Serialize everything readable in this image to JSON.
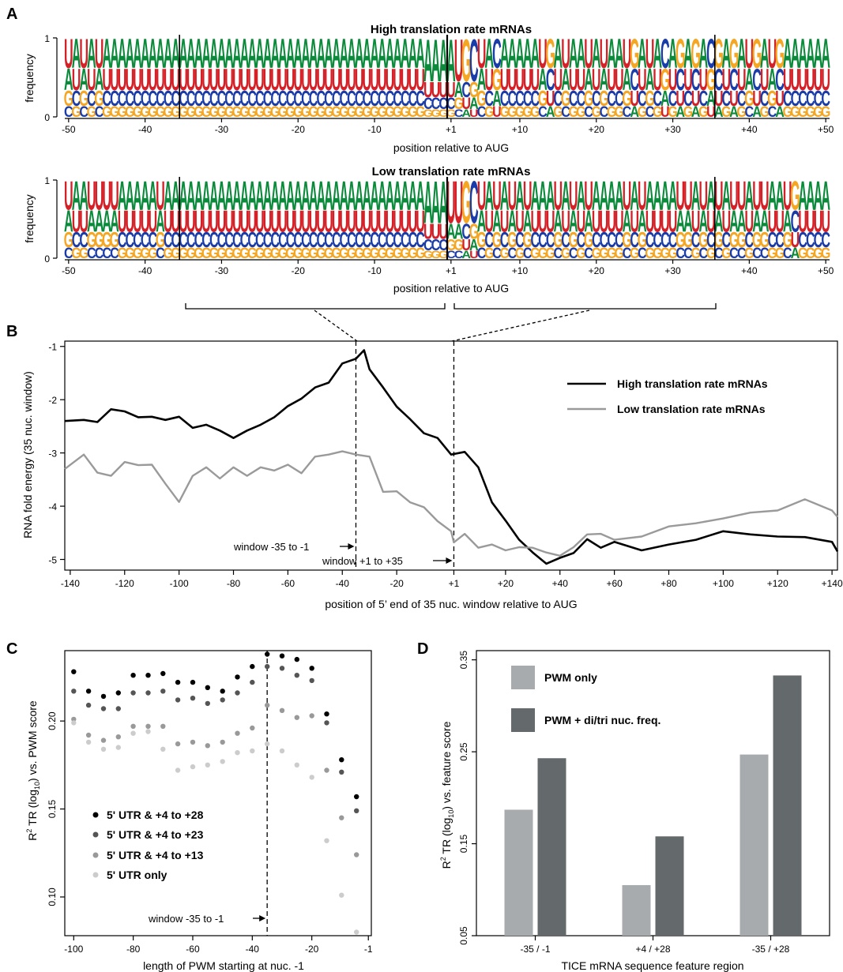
{
  "panels": {
    "A": {
      "letter": "A"
    },
    "B": {
      "letter": "B"
    },
    "C": {
      "letter": "C"
    },
    "D": {
      "letter": "D"
    }
  },
  "colors": {
    "A": "#0a8a3a",
    "C": "#1a3ca8",
    "G": "#f5a623",
    "U": "#d42027",
    "high": "#000000",
    "low": "#9a9a9a",
    "bar_pwm": "#a7abad",
    "bar_pwm_di": "#646a6b"
  },
  "chart_data": [
    {
      "type": "sequence-logo",
      "title": "High translation rate mRNAs",
      "ylabel": "frequency",
      "xlabel": "position relative to AUG",
      "yticks": [
        "0",
        "1"
      ],
      "xticks": [
        "-50",
        "-40",
        "-30",
        "-20",
        "-10",
        "+1",
        "+10",
        "+20",
        "+30",
        "+40",
        "+50"
      ],
      "boundaries": [
        -35,
        0,
        35
      ],
      "positions": [
        -50,
        -49,
        -48,
        -47,
        -46,
        -45,
        -44,
        -43,
        -42,
        -41,
        -40,
        -39,
        -38,
        -37,
        -36,
        -35,
        -34,
        -33,
        -32,
        -31,
        -30,
        -29,
        -28,
        -27,
        -26,
        -25,
        -24,
        -23,
        -22,
        -21,
        -20,
        -19,
        -18,
        -17,
        -16,
        -15,
        -14,
        -13,
        -12,
        -11,
        -10,
        -9,
        -8,
        -7,
        -6,
        -5,
        -4,
        -3,
        -2,
        -1,
        1,
        2,
        3,
        4,
        5,
        6,
        7,
        8,
        9,
        10,
        11,
        12,
        13,
        14,
        15,
        16,
        17,
        18,
        19,
        20,
        21,
        22,
        23,
        24,
        25,
        26,
        27,
        28,
        29,
        30,
        31,
        32,
        33,
        34,
        35,
        36,
        37,
        38,
        39,
        40,
        41,
        42,
        43,
        44,
        45,
        46,
        47,
        48,
        49,
        50
      ],
      "top_letters": "UAUAUAAAAAAAAAAAAAAAAAAAAAAAAAAAAAAAAAAAAAAAAAAAAAAUGCUACAAAAAUGAUAAUAUAAUGAUACAGAGACGAGAUGAUGA"
    },
    {
      "type": "sequence-logo",
      "title": "Low translation rate mRNAs",
      "ylabel": "frequency",
      "xlabel": "position relative to AUG",
      "yticks": [
        "0",
        "1"
      ],
      "xticks": [
        "-50",
        "-40",
        "-30",
        "-20",
        "-10",
        "+1",
        "+10",
        "+20",
        "+30",
        "+40",
        "+50"
      ],
      "boundaries": [
        -35,
        0,
        35
      ],
      "positions": [
        -50,
        -49,
        -48,
        -47,
        -46,
        -45,
        -44,
        -43,
        -42,
        -41,
        -40,
        -39,
        -38,
        -37,
        -36,
        -35,
        -34,
        -33,
        -32,
        -31,
        -30,
        -29,
        -28,
        -27,
        -26,
        -25,
        -24,
        -23,
        -22,
        -21,
        -20,
        -19,
        -18,
        -17,
        -16,
        -15,
        -14,
        -13,
        -12,
        -11,
        -10,
        -9,
        -8,
        -7,
        -6,
        -5,
        -4,
        -3,
        -2,
        -1,
        1,
        2,
        3,
        4,
        5,
        6,
        7,
        8,
        9,
        10,
        11,
        12,
        13,
        14,
        15,
        16,
        17,
        18,
        19,
        20,
        21,
        22,
        23,
        24,
        25,
        26,
        27,
        28,
        29,
        30,
        31,
        32,
        33,
        34,
        35,
        36,
        37,
        38,
        39,
        40,
        41,
        42,
        43,
        44,
        45,
        46,
        47,
        48,
        49,
        50
      ],
      "top_letters": "UAAUUUUAAAAAUAAAAAAAAAAAAAAAAAAAAAAAAAAAAAAAAAAAAAUUGCUAUAUAUAAAUAUAUAAAAUAUAAAAUUAUAUAUUAUUAAUGA"
    },
    {
      "type": "line",
      "xlabel": "position of 5’ end of 35 nuc. window relative to AUG",
      "ylabel": "RNA fold energy (35 nuc. window)",
      "xticks": [
        "-140",
        "-120",
        "-100",
        "-80",
        "-60",
        "-40",
        "-20",
        "+1",
        "+20",
        "+40",
        "+60",
        "+80",
        "+100",
        "+120",
        "+140"
      ],
      "yticks": [
        "-1",
        "-2",
        "-3",
        "-4",
        "-5"
      ],
      "xlim": [
        -142,
        142
      ],
      "ylim": [
        -5.2,
        -0.9
      ],
      "vlines": [
        -35,
        1
      ],
      "annotations": [
        "window -35 to -1",
        "window +1 to +35"
      ],
      "series": [
        {
          "name": "High translation rate mRNAs",
          "x": [
            -142,
            -135,
            -130,
            -125,
            -120,
            -115,
            -110,
            -105,
            -100,
            -95,
            -90,
            -85,
            -80,
            -75,
            -70,
            -65,
            -60,
            -55,
            -50,
            -45,
            -40,
            -35,
            -32,
            -30,
            -25,
            -20,
            -15,
            -10,
            -5,
            0,
            1,
            5,
            10,
            15,
            20,
            25,
            30,
            35,
            40,
            45,
            50,
            55,
            60,
            70,
            80,
            90,
            100,
            110,
            120,
            130,
            140,
            142
          ],
          "values": [
            -2.4,
            -2.35,
            -2.45,
            -2.15,
            -2.25,
            -2.3,
            -2.35,
            -2.35,
            -2.35,
            -2.5,
            -2.5,
            -2.55,
            -2.75,
            -2.55,
            -2.5,
            -2.3,
            -2.15,
            -1.95,
            -1.8,
            -1.65,
            -1.35,
            -1.2,
            -1.1,
            -1.4,
            -1.8,
            -2.1,
            -2.4,
            -2.6,
            -2.75,
            -3.0,
            -3.05,
            -2.95,
            -3.3,
            -3.9,
            -4.3,
            -4.6,
            -4.9,
            -5.05,
            -5.0,
            -4.85,
            -4.65,
            -4.75,
            -4.7,
            -4.8,
            -4.75,
            -4.6,
            -4.5,
            -4.5,
            -4.6,
            -4.55,
            -4.7,
            -4.85
          ]
        },
        {
          "name": "Low translation rate mRNAs",
          "x": [
            -142,
            -135,
            -130,
            -125,
            -120,
            -115,
            -110,
            -105,
            -100,
            -95,
            -90,
            -85,
            -80,
            -75,
            -70,
            -65,
            -60,
            -55,
            -50,
            -45,
            -40,
            -35,
            -30,
            -25,
            -20,
            -15,
            -10,
            -5,
            0,
            1,
            5,
            10,
            15,
            20,
            25,
            30,
            35,
            40,
            45,
            50,
            55,
            60,
            70,
            80,
            90,
            100,
            110,
            120,
            130,
            140,
            142
          ],
          "values": [
            -3.3,
            -3.0,
            -3.4,
            -3.4,
            -3.2,
            -3.2,
            -3.25,
            -3.55,
            -3.95,
            -3.4,
            -3.3,
            -3.45,
            -3.3,
            -3.4,
            -3.3,
            -3.3,
            -3.25,
            -3.35,
            -3.1,
            -3.0,
            -3.0,
            -3.0,
            -3.1,
            -3.7,
            -3.75,
            -3.9,
            -4.05,
            -4.25,
            -4.5,
            -4.65,
            -4.55,
            -4.75,
            -4.75,
            -4.8,
            -4.8,
            -4.75,
            -4.9,
            -4.9,
            -4.8,
            -4.5,
            -4.55,
            -4.6,
            -4.6,
            -4.35,
            -4.35,
            -4.2,
            -4.15,
            -4.05,
            -3.9,
            -4.05,
            -4.2
          ]
        }
      ],
      "legend": "top-right"
    },
    {
      "type": "scatter",
      "xlabel": "length of PWM starting at nuc. -1",
      "ylabel": "R² TR (log₁₀) vs. PWM score",
      "xticks": [
        "-100",
        "-80",
        "-60",
        "-40",
        "-20",
        "-1"
      ],
      "yticks": [
        "0.10",
        "0.15",
        "0.20"
      ],
      "xlim": [
        -103,
        0
      ],
      "ylim": [
        0.078,
        0.24
      ],
      "vline": -35,
      "annotation": "window -35 to -1",
      "x": [
        -100,
        -95,
        -90,
        -85,
        -80,
        -75,
        -70,
        -65,
        -60,
        -55,
        -50,
        -45,
        -40,
        -35,
        -30,
        -25,
        -20,
        -15,
        -10,
        -5
      ],
      "series": [
        {
          "name": "5' UTR & +4 to +28",
          "color": "#000000",
          "values": [
            0.228,
            0.217,
            0.214,
            0.216,
            0.226,
            0.226,
            0.227,
            0.222,
            0.222,
            0.219,
            0.217,
            0.225,
            0.231,
            0.238,
            0.237,
            0.235,
            0.23,
            0.204,
            0.178,
            0.157
          ]
        },
        {
          "name": "5' UTR & +4 to +23",
          "color": "#555555",
          "values": [
            0.217,
            0.209,
            0.207,
            0.207,
            0.216,
            0.216,
            0.217,
            0.212,
            0.213,
            0.21,
            0.212,
            0.216,
            0.222,
            0.231,
            0.23,
            0.226,
            0.223,
            0.199,
            0.171,
            0.149
          ]
        },
        {
          "name": "5' UTR & +4 to +13",
          "color": "#999999",
          "values": [
            0.201,
            0.192,
            0.189,
            0.191,
            0.197,
            0.197,
            0.197,
            0.187,
            0.188,
            0.186,
            0.188,
            0.193,
            0.196,
            0.209,
            0.206,
            0.202,
            0.203,
            0.172,
            0.145,
            0.124
          ]
        },
        {
          "name": "5' UTR only",
          "color": "#cccccc",
          "values": [
            0.199,
            0.188,
            0.184,
            0.185,
            0.193,
            0.194,
            0.184,
            0.172,
            0.174,
            0.175,
            0.177,
            0.182,
            0.183,
            0.187,
            0.183,
            0.175,
            0.168,
            0.132,
            0.101,
            0.08
          ]
        }
      ]
    },
    {
      "type": "bar",
      "xlabel": "TICE mRNA sequence feature region",
      "ylabel": "R² TR (log₁₀) vs. feature score",
      "categories": [
        "-35 / -1",
        "+4 / +28",
        "-35 / +28"
      ],
      "yticks": [
        "0.05",
        "0.15",
        "0.25",
        "0.35"
      ],
      "ylim": [
        0.05,
        0.36
      ],
      "legend": "top-left",
      "series": [
        {
          "name": "PWM only",
          "color": "#a7abad",
          "values": [
            0.187,
            0.105,
            0.247
          ]
        },
        {
          "name": "PWM + di/tri nuc. freq.",
          "color": "#646a6b",
          "values": [
            0.243,
            0.158,
            0.333
          ]
        }
      ]
    }
  ]
}
